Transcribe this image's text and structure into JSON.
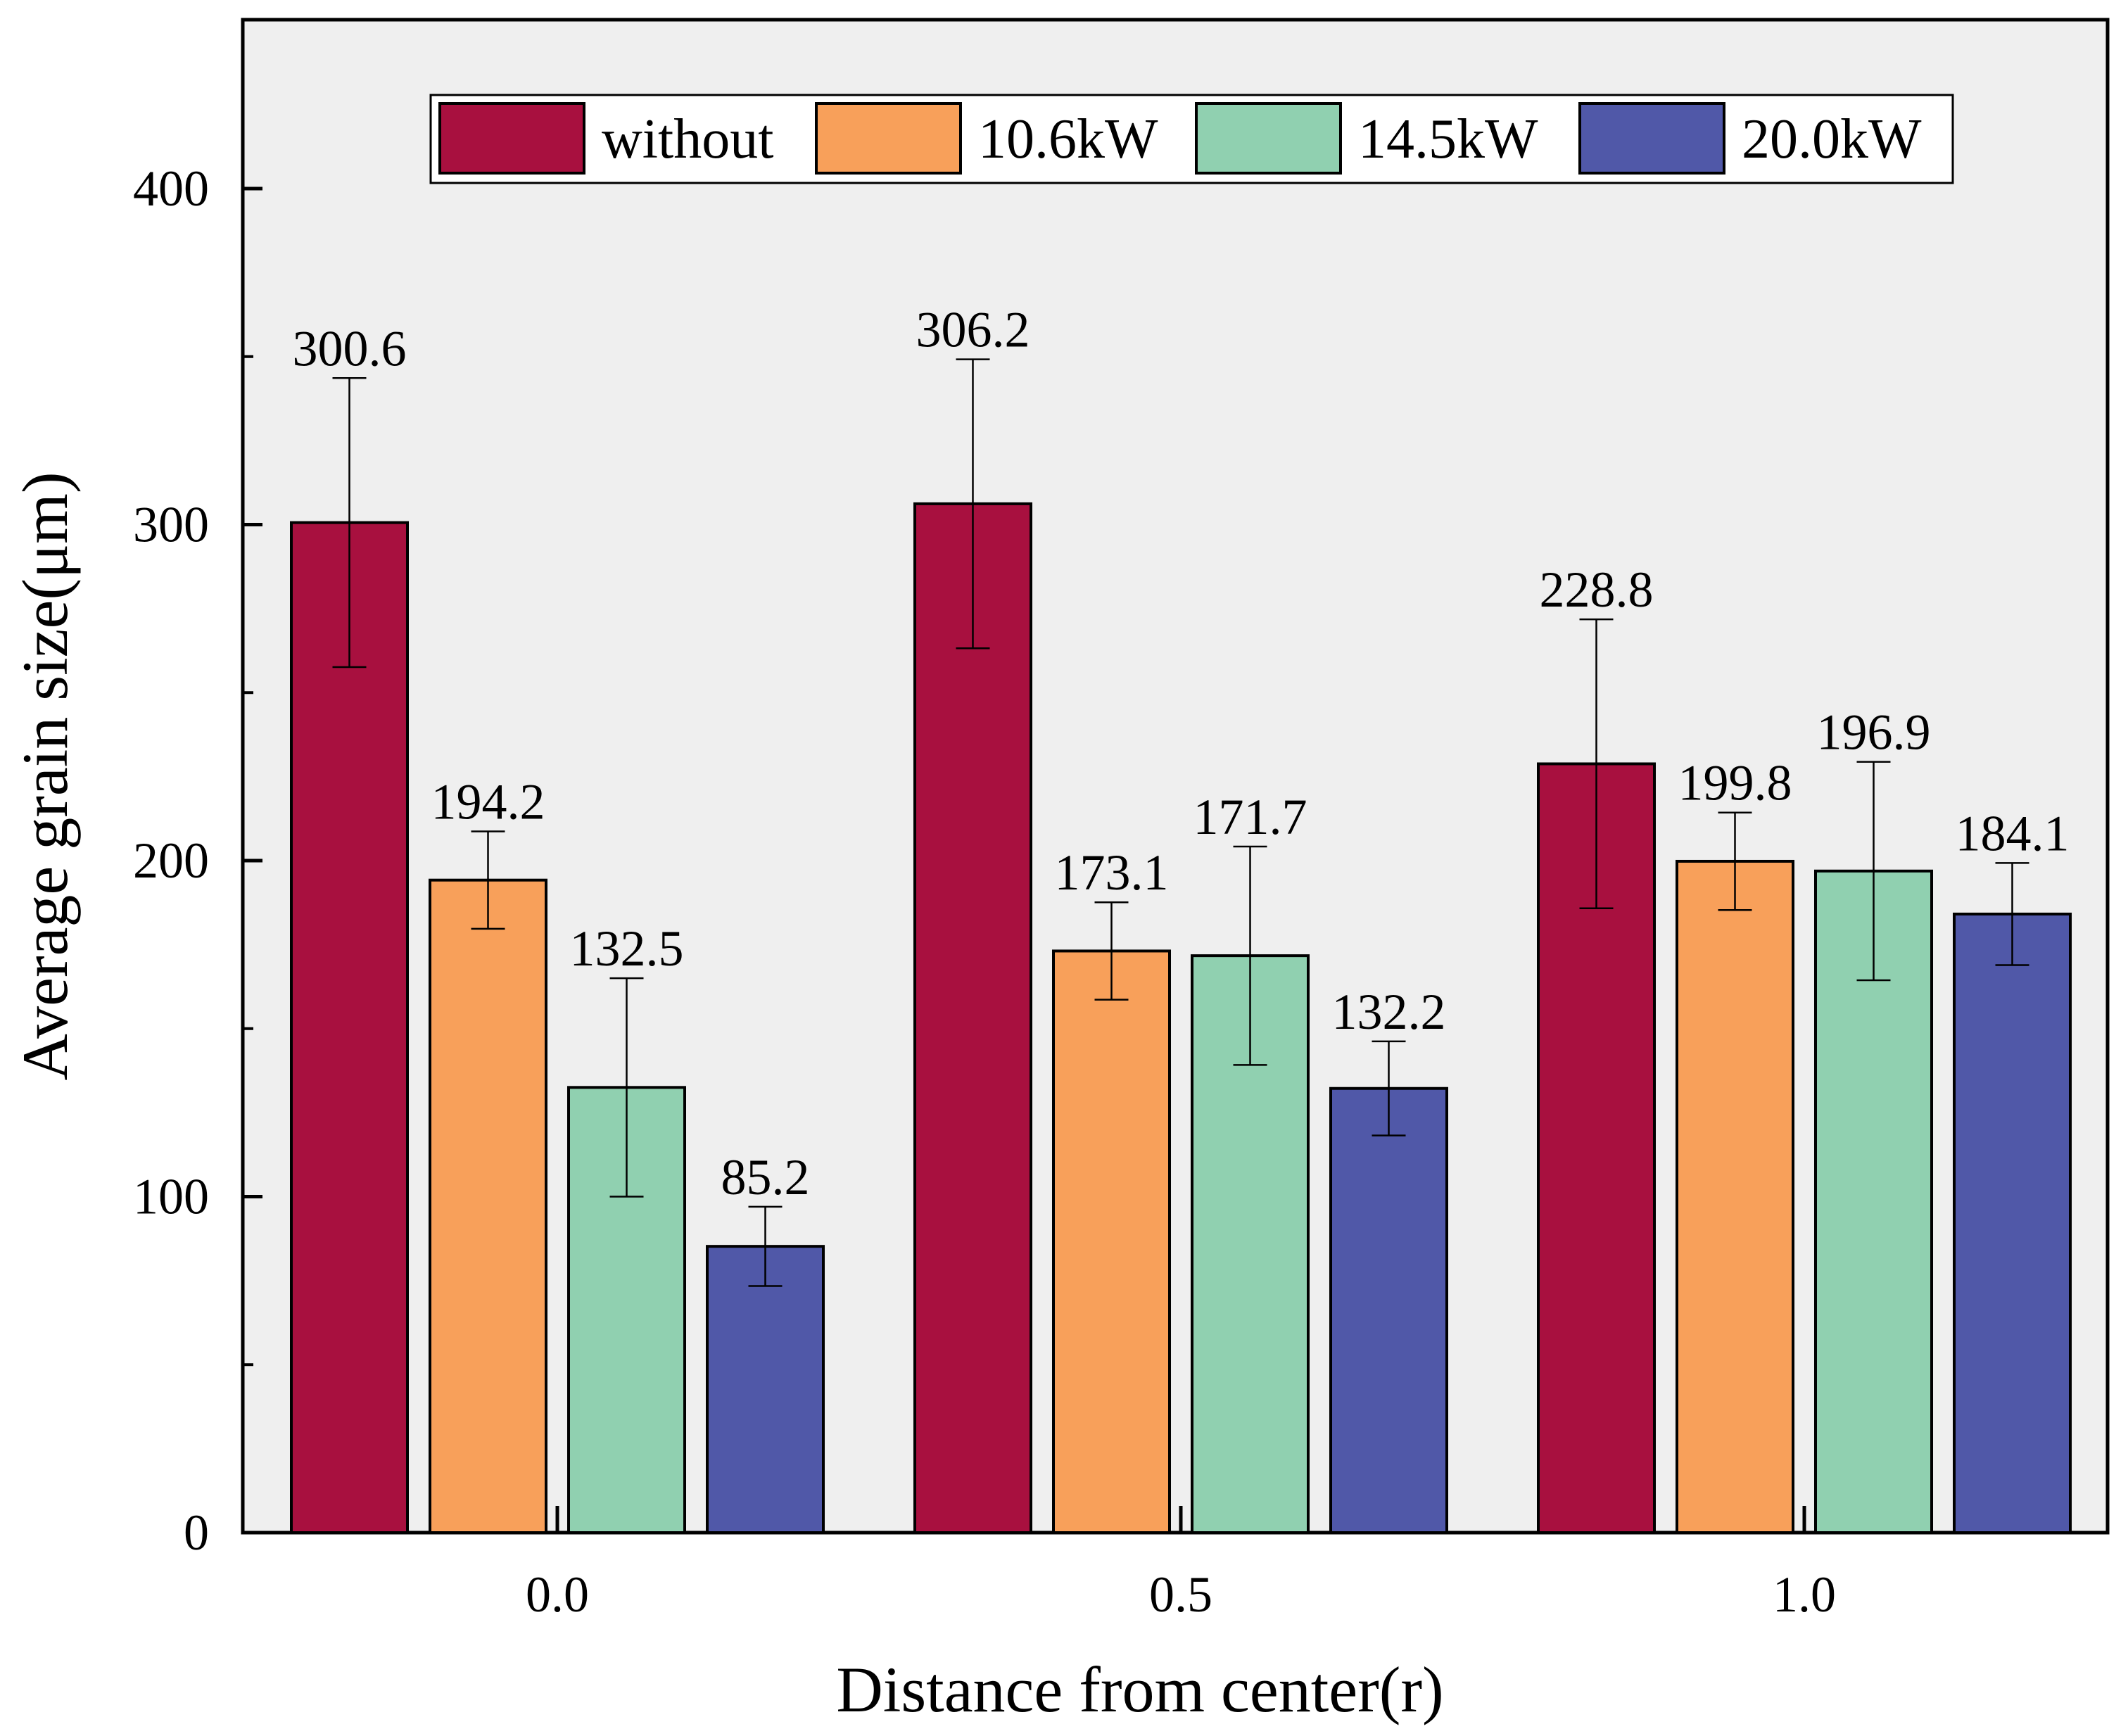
{
  "chart_data": {
    "type": "bar",
    "categories": [
      "0.0",
      "0.5",
      "1.0"
    ],
    "series": [
      {
        "name": "without",
        "color": "#A8103F",
        "values": [
          300.6,
          306.2,
          228.8
        ],
        "errors": [
          43.0,
          43.0,
          43.0
        ]
      },
      {
        "name": "10.6kW",
        "color": "#F8A05A",
        "values": [
          194.2,
          173.1,
          199.8
        ],
        "errors": [
          14.5,
          14.5,
          14.5
        ]
      },
      {
        "name": "14.5kW",
        "color": "#90D0B0",
        "values": [
          132.5,
          171.7,
          196.9
        ],
        "errors": [
          32.5,
          32.5,
          32.5
        ]
      },
      {
        "name": "20.0kW",
        "color": "#5058A8",
        "values": [
          85.2,
          132.2,
          184.1
        ],
        "errors": [
          11.8,
          14.0,
          15.2
        ]
      }
    ],
    "data_labels": [
      [
        "300.6",
        "306.2",
        "228.8"
      ],
      [
        "194.2",
        "173.1",
        "199.8"
      ],
      [
        "132.5",
        "171.7",
        "196.9"
      ],
      [
        "85.2",
        "132.2",
        "184.1"
      ]
    ],
    "xlabel": "Distance from center(r)",
    "ylabel": "Average grain size(μm)",
    "ylim": [
      0,
      450
    ],
    "yticks": [
      "0",
      "100",
      "200",
      "300",
      "400"
    ],
    "legend_position": "top",
    "plot_background": "#EFEFEF",
    "grid": false
  }
}
